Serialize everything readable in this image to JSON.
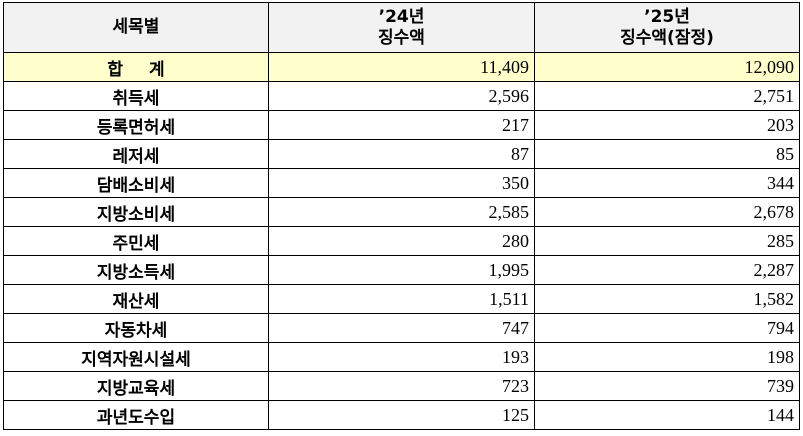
{
  "header": {
    "col1": "세목별",
    "col2_line1": "’24년",
    "col2_line2": "징수액",
    "col3_line1": "’25년",
    "col3_line2": "징수액(잠정)"
  },
  "total": {
    "label": "합 계",
    "v2024": "11,409",
    "v2025": "12,090"
  },
  "rows": [
    {
      "label": "취득세",
      "v2024": "2,596",
      "v2025": "2,751"
    },
    {
      "label": "등록면허세",
      "v2024": "217",
      "v2025": "203"
    },
    {
      "label": "레저세",
      "v2024": "87",
      "v2025": "85"
    },
    {
      "label": "담배소비세",
      "v2024": "350",
      "v2025": "344"
    },
    {
      "label": "지방소비세",
      "v2024": "2,585",
      "v2025": "2,678"
    },
    {
      "label": "주민세",
      "v2024": "280",
      "v2025": "285"
    },
    {
      "label": "지방소득세",
      "v2024": "1,995",
      "v2025": "2,287"
    },
    {
      "label": "재산세",
      "v2024": "1,511",
      "v2025": "1,582"
    },
    {
      "label": "자동차세",
      "v2024": "747",
      "v2025": "794"
    },
    {
      "label": "지역자원시설세",
      "v2024": "193",
      "v2025": "198"
    },
    {
      "label": "지방교육세",
      "v2024": "723",
      "v2025": "739"
    },
    {
      "label": "과년도수입",
      "v2024": "125",
      "v2025": "144"
    }
  ]
}
